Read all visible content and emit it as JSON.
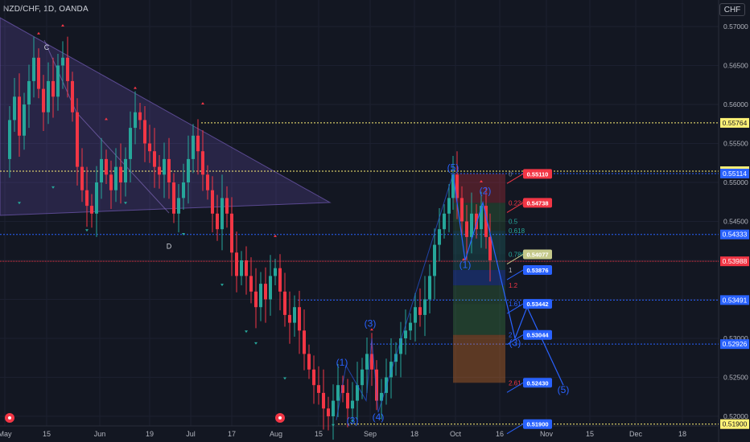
{
  "symbol_label": "NZD/CHF, 1D, OANDA",
  "currency": "CHF",
  "x_axis": [
    "May",
    "15",
    "Jun",
    "19",
    "Jul",
    "17",
    "Aug",
    "15",
    "Sep",
    "18",
    "Oct",
    "16",
    "Nov",
    "15",
    "Dec",
    "18"
  ],
  "y_axis": [
    "0.57000",
    "0.56500",
    "0.56000",
    "0.55500",
    "0.55000",
    "0.54500",
    "0.54000",
    "0.53500",
    "0.53000",
    "0.52500",
    "0.52000",
    "0.51500"
  ],
  "price_tags": [
    {
      "label": "0.55764",
      "bg": "#fff176",
      "fg": "#131722"
    },
    {
      "label": "0.55144",
      "bg": "#fff176",
      "fg": "#131722"
    },
    {
      "label": "0.55114",
      "bg": "#2962ff",
      "fg": "#ffffff"
    },
    {
      "label": "0.54333",
      "bg": "#2962ff",
      "fg": "#ffffff"
    },
    {
      "label": "0.53988",
      "bg": "#f23645",
      "fg": "#ffffff"
    },
    {
      "label": "0.53491",
      "bg": "#2962ff",
      "fg": "#ffffff"
    },
    {
      "label": "0.52926",
      "bg": "#2962ff",
      "fg": "#ffffff"
    },
    {
      "label": "0.51900",
      "bg": "#fff176",
      "fg": "#131722"
    }
  ],
  "pattern_points": [
    "C",
    "D"
  ],
  "wave_labels": [
    "(1)",
    "(3)",
    "(3)",
    "(4)",
    "(5)",
    "(2)",
    "(1)",
    "(3)",
    "(5)"
  ],
  "fib_levels": [
    "0",
    "0.236",
    "0.5",
    "0.618",
    "0.786",
    "1",
    "1.2",
    "1.61",
    "2",
    "2.61"
  ],
  "target_tags": [
    {
      "label": "0.55110",
      "bg": "#f23645"
    },
    {
      "label": "0.54738",
      "bg": "#f23645"
    },
    {
      "label": "0.54077",
      "bg": "#c5c98a"
    },
    {
      "label": "0.53876",
      "bg": "#2962ff"
    },
    {
      "label": "0.53442",
      "bg": "#2962ff"
    },
    {
      "label": "0.53044",
      "bg": "#2962ff"
    },
    {
      "label": "0.52430",
      "bg": "#2962ff"
    },
    {
      "label": "0.51900",
      "bg": "#2962ff"
    }
  ],
  "colors": {
    "bull": "#26a69a",
    "bear": "#f23645",
    "wave": "#2962ff",
    "level_yellow": "#fff176"
  }
}
